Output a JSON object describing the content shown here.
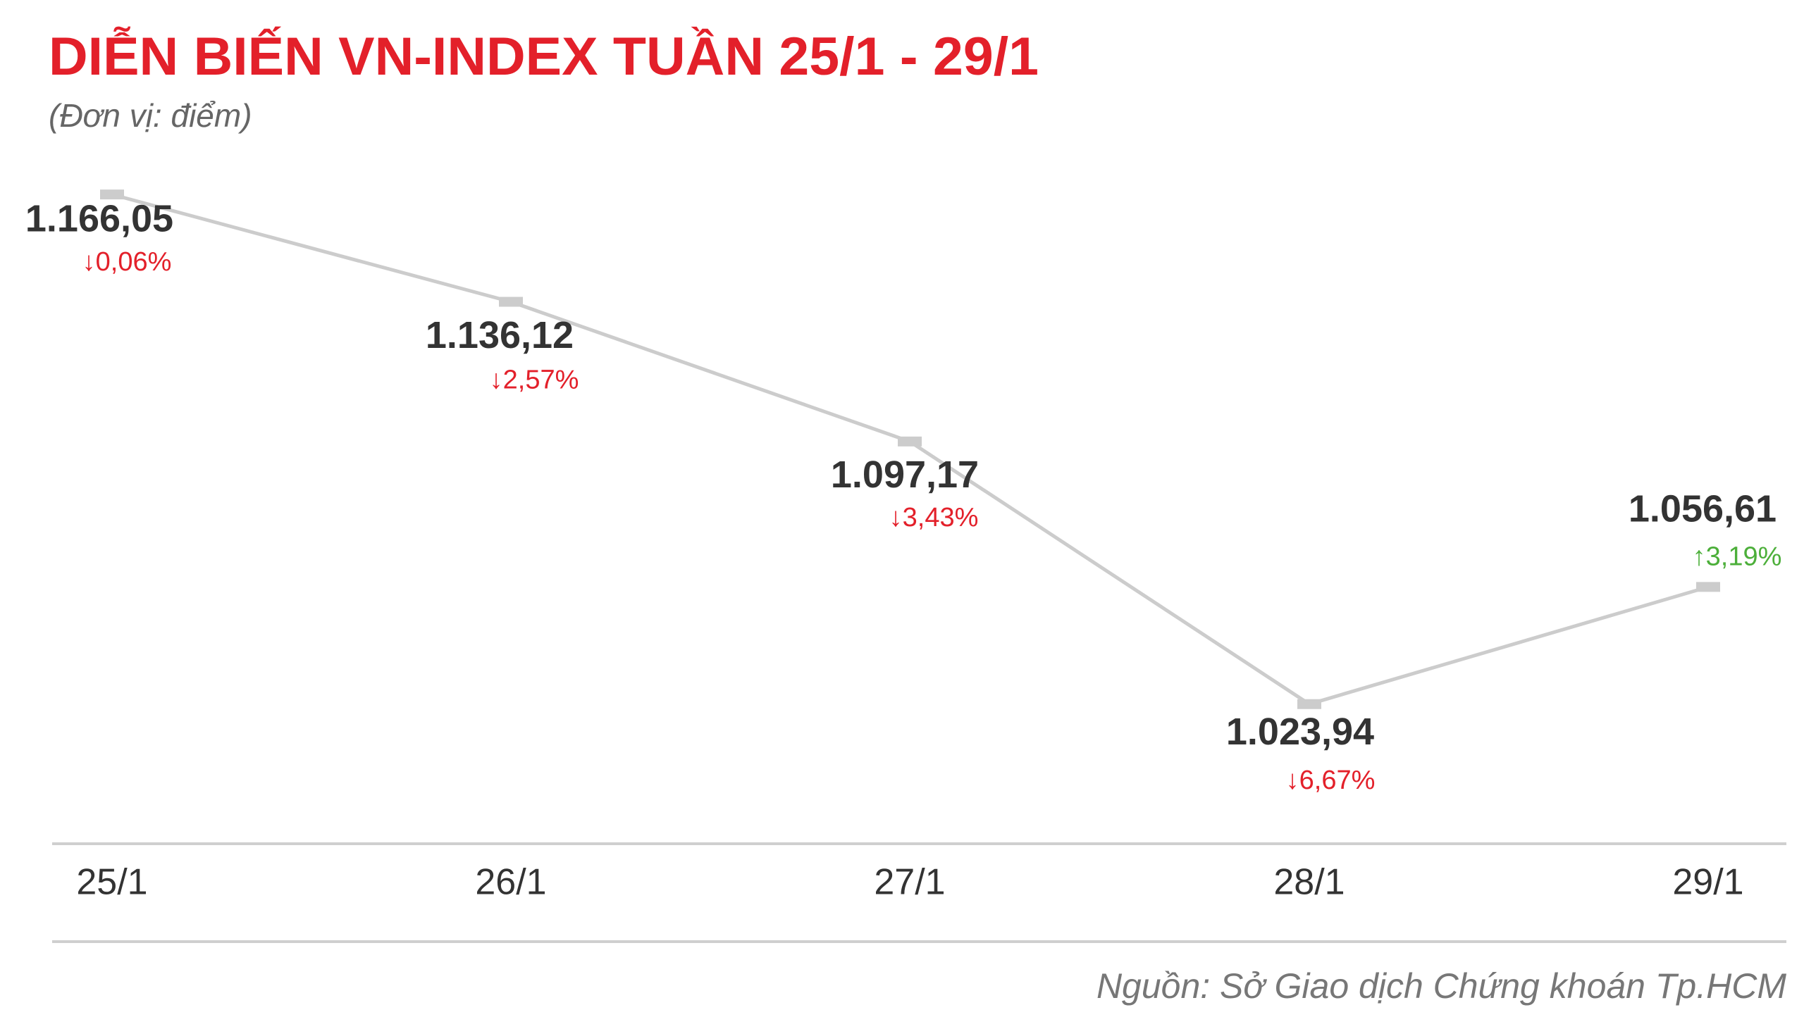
{
  "chart_data": {
    "type": "line",
    "title": "DIỄN BIẾN VN-INDEX TUẦN 25/1 - 29/1",
    "subtitle": "(Đơn vị: điểm)",
    "categories": [
      "25/1",
      "26/1",
      "27/1",
      "28/1",
      "29/1"
    ],
    "values": [
      1166.05,
      1136.12,
      1097.17,
      1023.94,
      1056.61
    ],
    "value_labels": [
      "1.166,05",
      "1.136,12",
      "1.097,17",
      "1.023,94",
      "1.056,61"
    ],
    "change_labels": [
      "↓0,06%",
      "↓2,57%",
      "↓3,43%",
      "↓6,67%",
      "↑3,19%"
    ],
    "change_colors": [
      "#e3202a",
      "#e3202a",
      "#e3202a",
      "#e3202a",
      "#4caf3a"
    ],
    "color": "#cccccc",
    "ylim": [
      985,
      1170
    ],
    "source": "Nguồn: Sở Giao dịch Chứng khoán Tp.HCM"
  }
}
